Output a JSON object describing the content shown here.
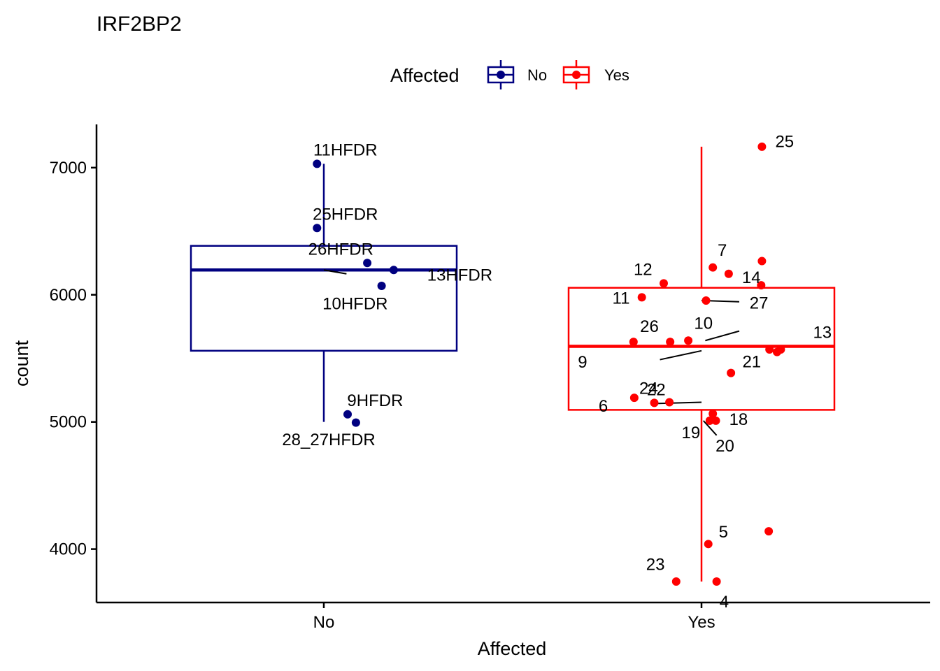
{
  "chart_data": {
    "type": "boxplot",
    "title": "IRF2BP2",
    "xlabel": "Affected",
    "ylabel": "count",
    "ylim": [
      3580,
      7340
    ],
    "y_ticks": [
      4000,
      5000,
      6000,
      7000
    ],
    "y_tick_labels": [
      "4000",
      "5000",
      "6000",
      "7000"
    ],
    "categories": [
      "No",
      "Yes"
    ],
    "legend": {
      "title": "Affected",
      "position": "top",
      "entries": [
        {
          "label": "No",
          "color": "#000080"
        },
        {
          "label": "Yes",
          "color": "#FF0000"
        }
      ]
    },
    "colors": {
      "No": "#000080",
      "Yes": "#FF0000",
      "axis": "#000000",
      "background": "#FFFFFF"
    },
    "boxes": [
      {
        "group": "No",
        "whisker_low": 5000,
        "q1": 5560,
        "median": 6195,
        "q3": 6385,
        "whisker_high": 7030
      },
      {
        "group": "Yes",
        "whisker_low": 3745,
        "q1": 5095,
        "median": 5595,
        "q3": 6055,
        "whisker_high": 7165
      }
    ],
    "points": [
      {
        "group": "No",
        "label": "11HFDR",
        "offset": -0.018,
        "value": 7030,
        "label_dx": 0.075,
        "label_value": 7140
      },
      {
        "group": "No",
        "label": "25HFDR",
        "offset": -0.018,
        "value": 6525,
        "label_dx": 0.075,
        "label_value": 6635
      },
      {
        "group": "No",
        "label": "26HFDR",
        "offset": 0.115,
        "value": 6250,
        "label_dx": -0.07,
        "label_value": 6360
      },
      {
        "group": "No",
        "label": "13HFDR",
        "offset": 0.185,
        "value": 6195,
        "label_dx": 0.175,
        "label_value": 6155
      },
      {
        "group": "No",
        "label": "10HFDR",
        "offset": 0.153,
        "value": 6070,
        "label_dx": -0.07,
        "label_value": 5930
      },
      {
        "group": "No",
        "label": "9HFDR",
        "offset": 0.063,
        "value": 5060,
        "label_dx": 0.073,
        "label_value": 5170
      },
      {
        "group": "No",
        "label": "28_27HFDR",
        "offset": 0.085,
        "value": 4995,
        "label_dx": -0.072,
        "label_value": 4860
      },
      {
        "group": "Yes",
        "label": "25",
        "offset": 0.16,
        "value": 7165,
        "label_dx": 0.06,
        "label_value": 7205
      },
      {
        "group": "Yes",
        "label": "7",
        "offset": 0.03,
        "value": 6215,
        "label_dx": 0.025,
        "label_value": 6350
      },
      {
        "group": "Yes",
        "label": "12",
        "offset": -0.1,
        "value": 6090,
        "label_dx": -0.055,
        "label_value": 6200
      },
      {
        "group": "Yes",
        "label": "14",
        "offset": 0.072,
        "value": 6165,
        "label_dx": 0.06,
        "label_value": 6135
      },
      {
        "group": "Yes",
        "label": "",
        "offset": 0.16,
        "value": 6265
      },
      {
        "group": "Yes",
        "label": "",
        "offset": 0.158,
        "value": 6075
      },
      {
        "group": "Yes",
        "label": "11",
        "offset": -0.158,
        "value": 5980,
        "label_dx": -0.055,
        "label_value": 5975
      },
      {
        "group": "Yes",
        "label": "27",
        "offset": 0.012,
        "value": 5955,
        "label_dx": 0.14,
        "label_value": 5935
      },
      {
        "group": "Yes",
        "label": "26",
        "offset": -0.083,
        "value": 5630,
        "label_dx": -0.055,
        "label_value": 5750
      },
      {
        "group": "Yes",
        "label": "10",
        "offset": -0.035,
        "value": 5640,
        "label_dx": 0.04,
        "label_value": 5775
      },
      {
        "group": "Yes",
        "label": "13",
        "offset": 0.18,
        "value": 5570,
        "label_dx": 0.14,
        "label_value": 5705
      },
      {
        "group": "Yes",
        "label": "9",
        "offset": -0.18,
        "value": 5630,
        "label_dx": -0.135,
        "label_value": 5470
      },
      {
        "group": "Yes",
        "label": "21",
        "offset": 0.078,
        "value": 5385,
        "label_dx": 0.055,
        "label_value": 5475
      },
      {
        "group": "Yes",
        "label": "",
        "offset": 0.2,
        "value": 5550
      },
      {
        "group": "Yes",
        "label": "",
        "offset": 0.21,
        "value": 5570
      },
      {
        "group": "Yes",
        "label": "24",
        "offset": -0.085,
        "value": 5155,
        "label_dx": -0.055,
        "label_value": 5265
      },
      {
        "group": "Yes",
        "label": "22",
        "offset": -0.178,
        "value": 5190,
        "label_dx": 0.058,
        "label_value": 5255
      },
      {
        "group": "Yes",
        "label": "6",
        "offset": -0.125,
        "value": 5150,
        "label_dx": -0.135,
        "label_value": 5125
      },
      {
        "group": "Yes",
        "label": "18",
        "offset": 0.038,
        "value": 5010,
        "label_dx": 0.06,
        "label_value": 5020
      },
      {
        "group": "Yes",
        "label": "",
        "offset": 0.03,
        "value": 5065
      },
      {
        "group": "Yes",
        "label": "19",
        "offset": 0.022,
        "value": 5010,
        "label_dx": -0.05,
        "label_value": 4915
      },
      {
        "group": "Yes",
        "label": "20",
        "offset": 0.022,
        "value": 5010,
        "label_dx": 0.04,
        "label_value": 4810
      },
      {
        "group": "Yes",
        "label": "5",
        "offset": 0.018,
        "value": 4040,
        "label_dx": 0.04,
        "label_value": 4135
      },
      {
        "group": "Yes",
        "label": "",
        "offset": 0.178,
        "value": 4140
      },
      {
        "group": "Yes",
        "label": "23",
        "offset": -0.067,
        "value": 3745,
        "label_dx": -0.055,
        "label_value": 3880
      },
      {
        "group": "Yes",
        "label": "4",
        "offset": 0.04,
        "value": 3745,
        "label_dx": 0.02,
        "label_value": 3585
      }
    ],
    "label_leader_lines": [
      {
        "group": "No",
        "label": "13HFDR",
        "from_offset": 0.0,
        "from_value": 6195,
        "to_offset": 0.06,
        "to_value": 6165
      },
      {
        "group": "Yes",
        "label": "27",
        "from_offset": 0.0,
        "from_value": 5955,
        "to_offset": 0.1,
        "to_value": 5945
      },
      {
        "group": "Yes",
        "label": "13",
        "from_offset": 0.01,
        "from_value": 5640,
        "to_offset": 0.1,
        "to_value": 5715
      },
      {
        "group": "Yes",
        "label": "9",
        "from_offset": -0.11,
        "from_value": 5490,
        "to_offset": 0.0,
        "to_value": 5560
      },
      {
        "group": "Yes",
        "label": "6",
        "from_offset": -0.115,
        "from_value": 5145,
        "to_offset": 0.0,
        "to_value": 5155
      },
      {
        "group": "Yes",
        "label": "20",
        "from_offset": 0.005,
        "from_value": 5010,
        "to_offset": 0.04,
        "to_value": 4895
      }
    ]
  }
}
